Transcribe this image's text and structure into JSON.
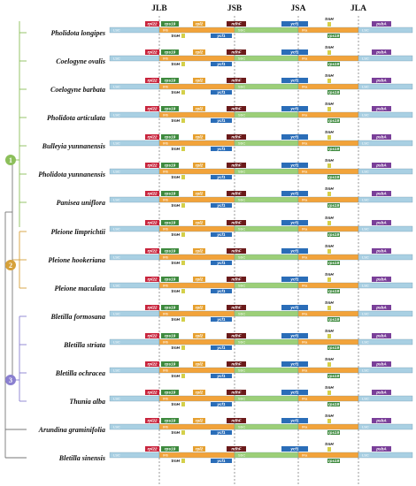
{
  "junctions": [
    "JLB",
    "JSB",
    "JSA",
    "JLA"
  ],
  "species": [
    "Pholidota longipes",
    "Coelogyne ovalis",
    "Coelogyne barbata",
    "Pholidota articulata",
    "Bulleyia yunnanensis",
    "Pholidota yunnanensis",
    "Panisea uniflora",
    "Pleione limprichtii",
    "Pleione hookeriana",
    "Pleione maculata",
    "Bletilla formosana",
    "Bletilla striata",
    "Bletilla ochracea",
    "Thunia alba",
    "Arundina graminifolia",
    "Bletilla sinensis"
  ],
  "groups": [
    "1",
    "2",
    "3"
  ],
  "regions": {
    "lsc": "LSC",
    "irb": "IRb",
    "ssc": "SSC",
    "ira": "IRa"
  },
  "genes": {
    "rpl22": "rpl22",
    "rps19": "rps19",
    "trnH": "trnH",
    "rpl2": "rpl2",
    "ndhF": "ndhF",
    "ycf1": "ycf1",
    "psbA": "psbA"
  },
  "colors": {
    "lsc": "#a9d0e3",
    "irb": "#f2a33a",
    "ssc": "#9ccf78",
    "ira": "#f2a33a",
    "rpl22": "#c8243c",
    "rps19": "#3e8a3e",
    "rpl2": "#e6a030",
    "ndhF": "#6b1a1a",
    "ycf1": "#2a6db8",
    "trnH": "#d4d04a",
    "psbA": "#7a3f99",
    "group1": "#8cbf5a",
    "group2": "#d6a13a",
    "group3": "#8a7fd0",
    "dashed": "#555555"
  }
}
